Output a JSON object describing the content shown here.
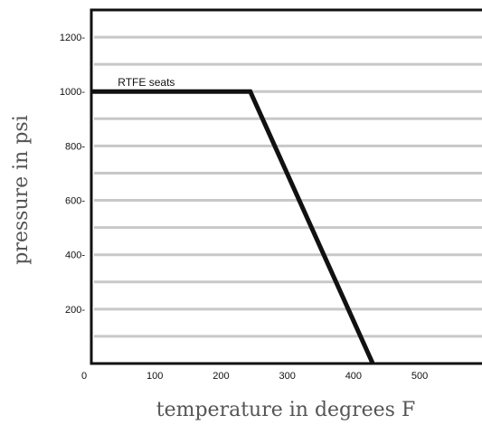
{
  "chart_data": {
    "type": "line",
    "title": "",
    "xlabel": "temperature in degrees F",
    "ylabel": "pressure in psi",
    "xlim": [
      0,
      590
    ],
    "ylim": [
      0,
      1300
    ],
    "x_ticks": [
      "0",
      "100",
      "200",
      "300",
      "400",
      "500"
    ],
    "y_ticks": [
      "200-",
      "400-",
      "600-",
      "800-",
      "1000-",
      "1200-"
    ],
    "y_tick_values": [
      200,
      400,
      600,
      800,
      1000,
      1200
    ],
    "x_tick_values": [
      0,
      100,
      200,
      300,
      400,
      500
    ],
    "gridline_values": [
      100,
      200,
      300,
      400,
      500,
      600,
      700,
      800,
      900,
      1000,
      1100,
      1200
    ],
    "grid": true,
    "series": [
      {
        "name": "RTFE seats",
        "x": [
          0,
          240,
          425
        ],
        "y": [
          1000,
          1000,
          0
        ]
      }
    ],
    "annotation": "RTFE seats",
    "colors": {
      "line": "#111111",
      "grid": "#c8c8c8",
      "frame": "#111111",
      "axis_title": "#555555"
    }
  }
}
